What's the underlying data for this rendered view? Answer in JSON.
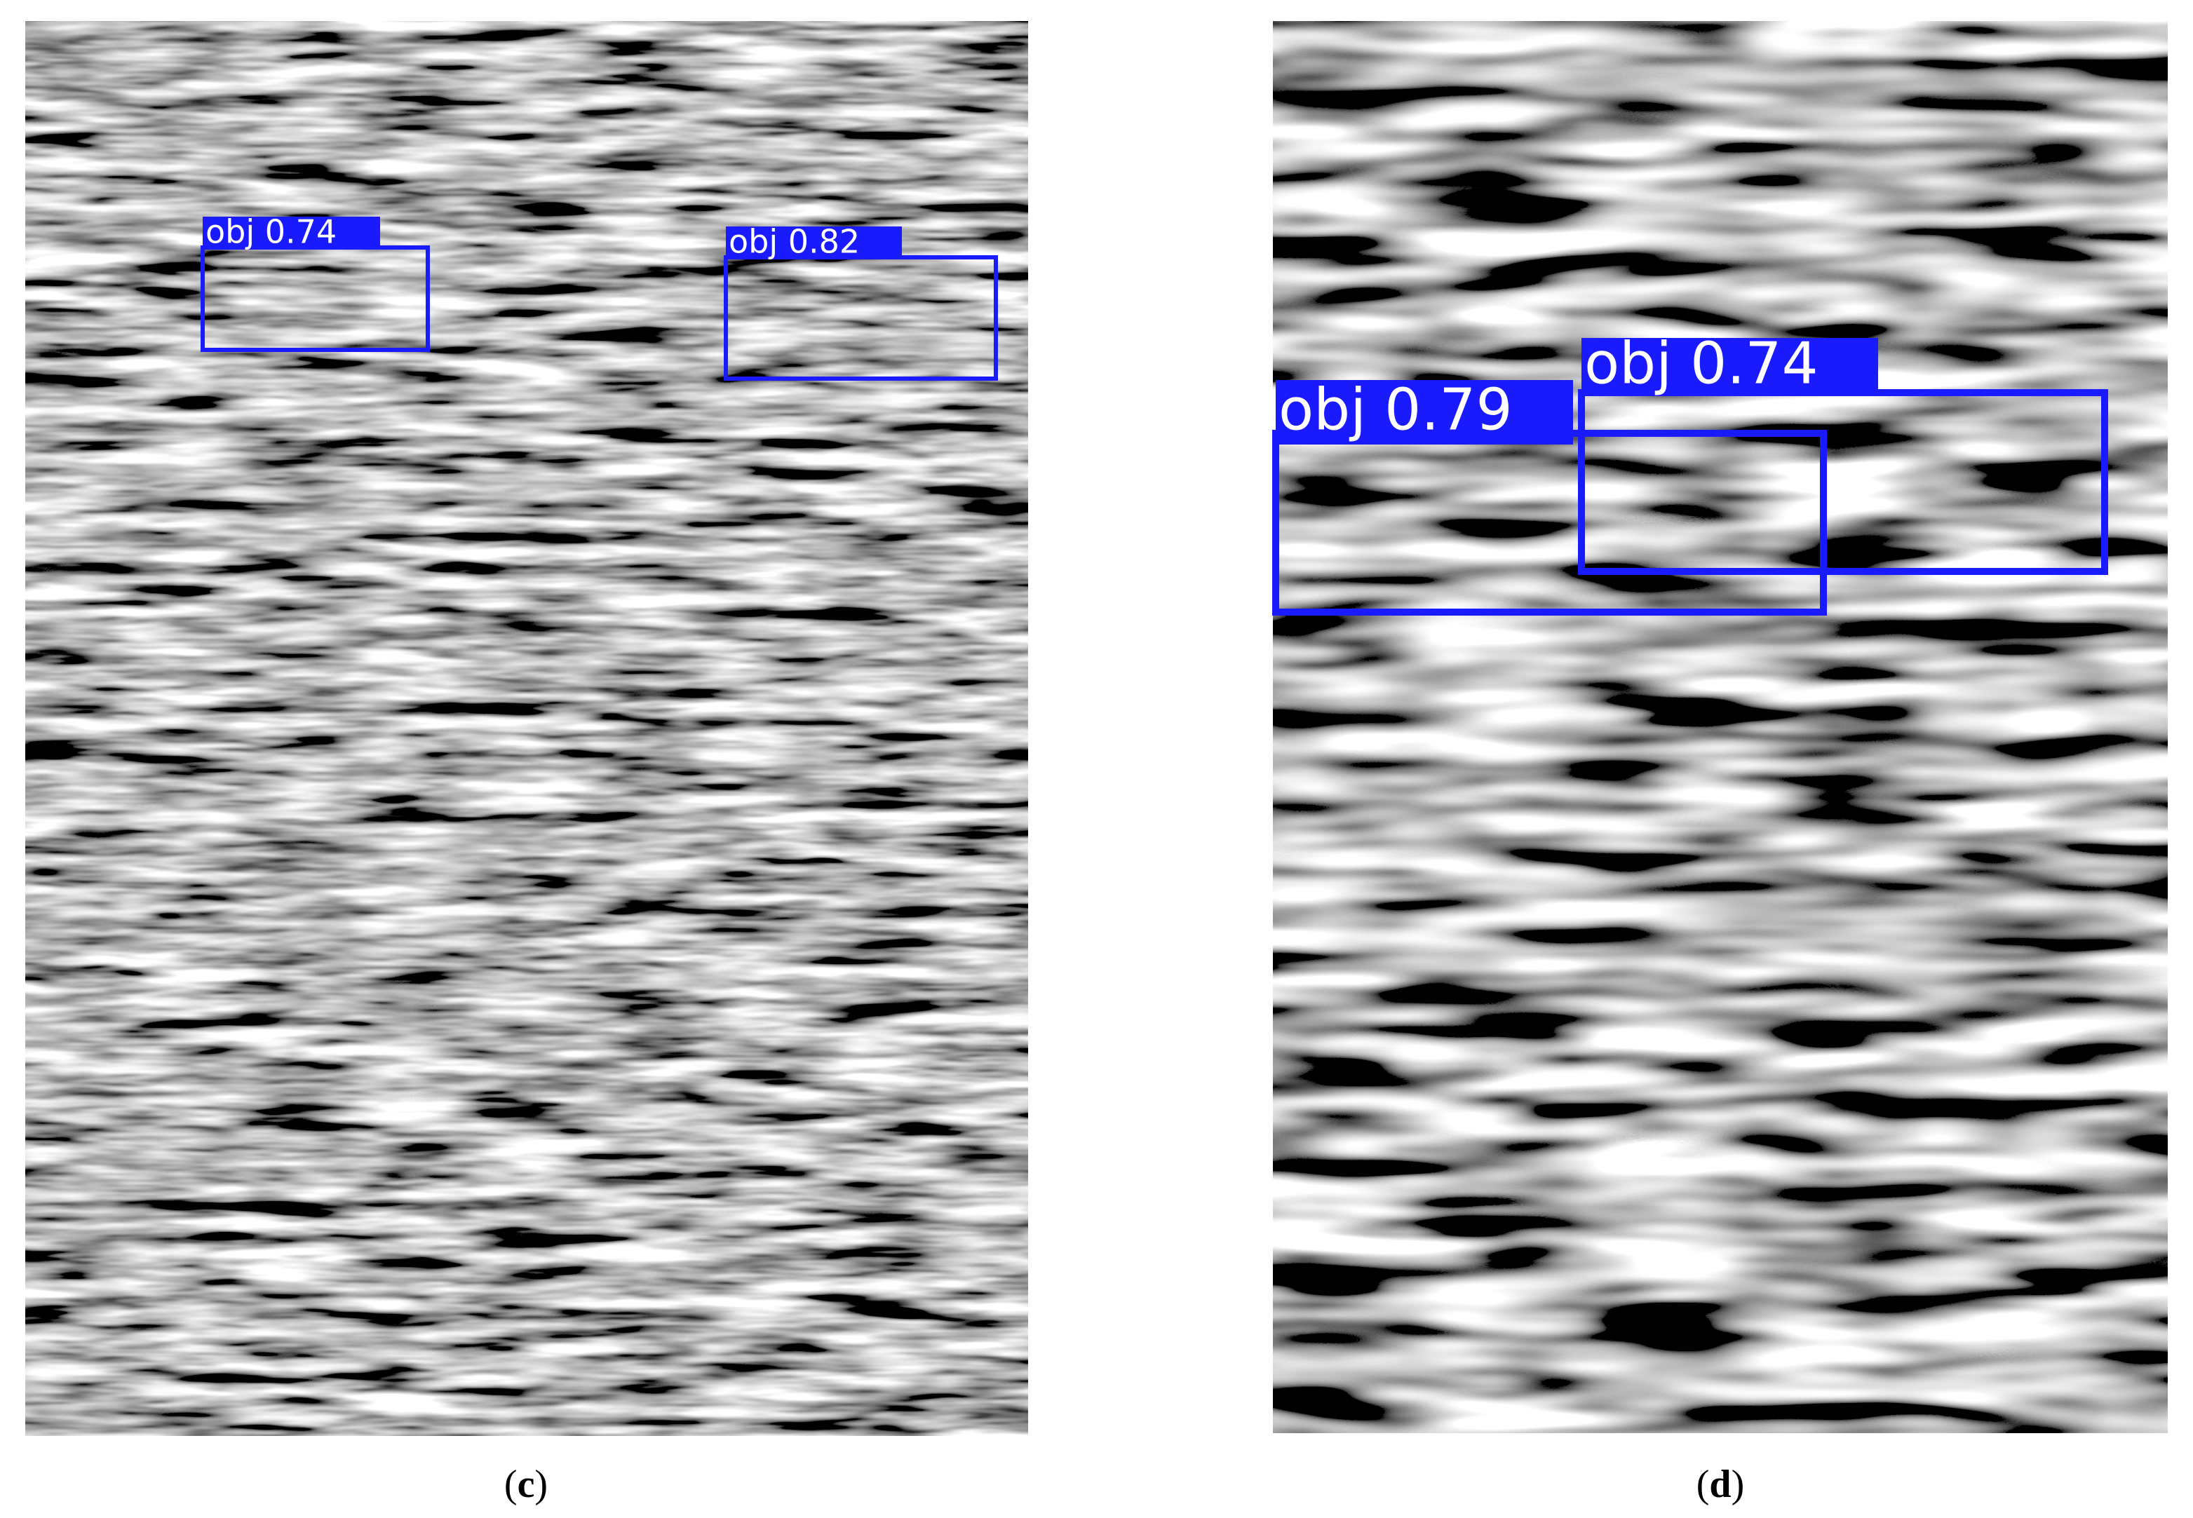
{
  "panels": [
    {
      "caption": {
        "open": "(",
        "label": "c",
        "close": ")"
      },
      "detections": [
        "obj 0.74",
        "obj 0.82"
      ]
    },
    {
      "caption": {
        "open": "(",
        "label": "d",
        "close": ")"
      },
      "detections": [
        "obj 0.79",
        "obj 0.74"
      ]
    }
  ]
}
